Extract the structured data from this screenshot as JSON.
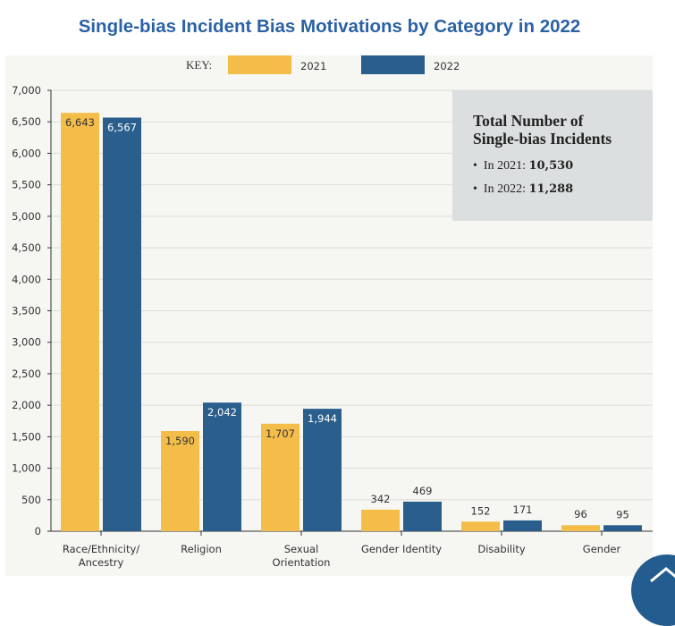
{
  "page_title": "Single-bias Incident Bias Motivations by Category in 2022",
  "chart_data": {
    "type": "bar",
    "title": "",
    "key_label": "KEY:",
    "categories": [
      "Race/Ethnicity/\nAncestry",
      "Religion",
      "Sexual\nOrientation",
      "Gender Identity",
      "Disability",
      "Gender"
    ],
    "series": [
      {
        "name": "2021",
        "color": "#f4bd4a",
        "values": [
          6643,
          1590,
          1707,
          342,
          152,
          96
        ],
        "labels": [
          "6,643",
          "1,590",
          "1,707",
          "342",
          "152",
          "96"
        ]
      },
      {
        "name": "2022",
        "color": "#2a5f8d",
        "values": [
          6567,
          2042,
          1944,
          469,
          171,
          95
        ],
        "labels": [
          "6,567",
          "2,042",
          "1,944",
          "469",
          "171",
          "95"
        ]
      }
    ],
    "ylim": [
      0,
      7000
    ],
    "yticks": [
      0,
      500,
      1000,
      1500,
      2000,
      2500,
      3000,
      3500,
      4000,
      4500,
      5000,
      5500,
      6000,
      6500,
      7000
    ],
    "ytick_labels": [
      "0",
      "500",
      "1,000",
      "1,500",
      "2,000",
      "2,500",
      "3,000",
      "3,500",
      "4,000",
      "4,500",
      "5,000",
      "5,500",
      "6,000",
      "6,500",
      "7,000"
    ],
    "grid": true,
    "legend_placement": "top-center",
    "annotation": {
      "heading_line1": "Total Number of",
      "heading_line2": "Single-bias Incidents",
      "item1_prefix": "In 2021: ",
      "item1_value": "10,530",
      "item2_prefix": "In 2022: ",
      "item2_value": "11,288"
    }
  },
  "scroll_top_icon": "chevron-up-icon"
}
